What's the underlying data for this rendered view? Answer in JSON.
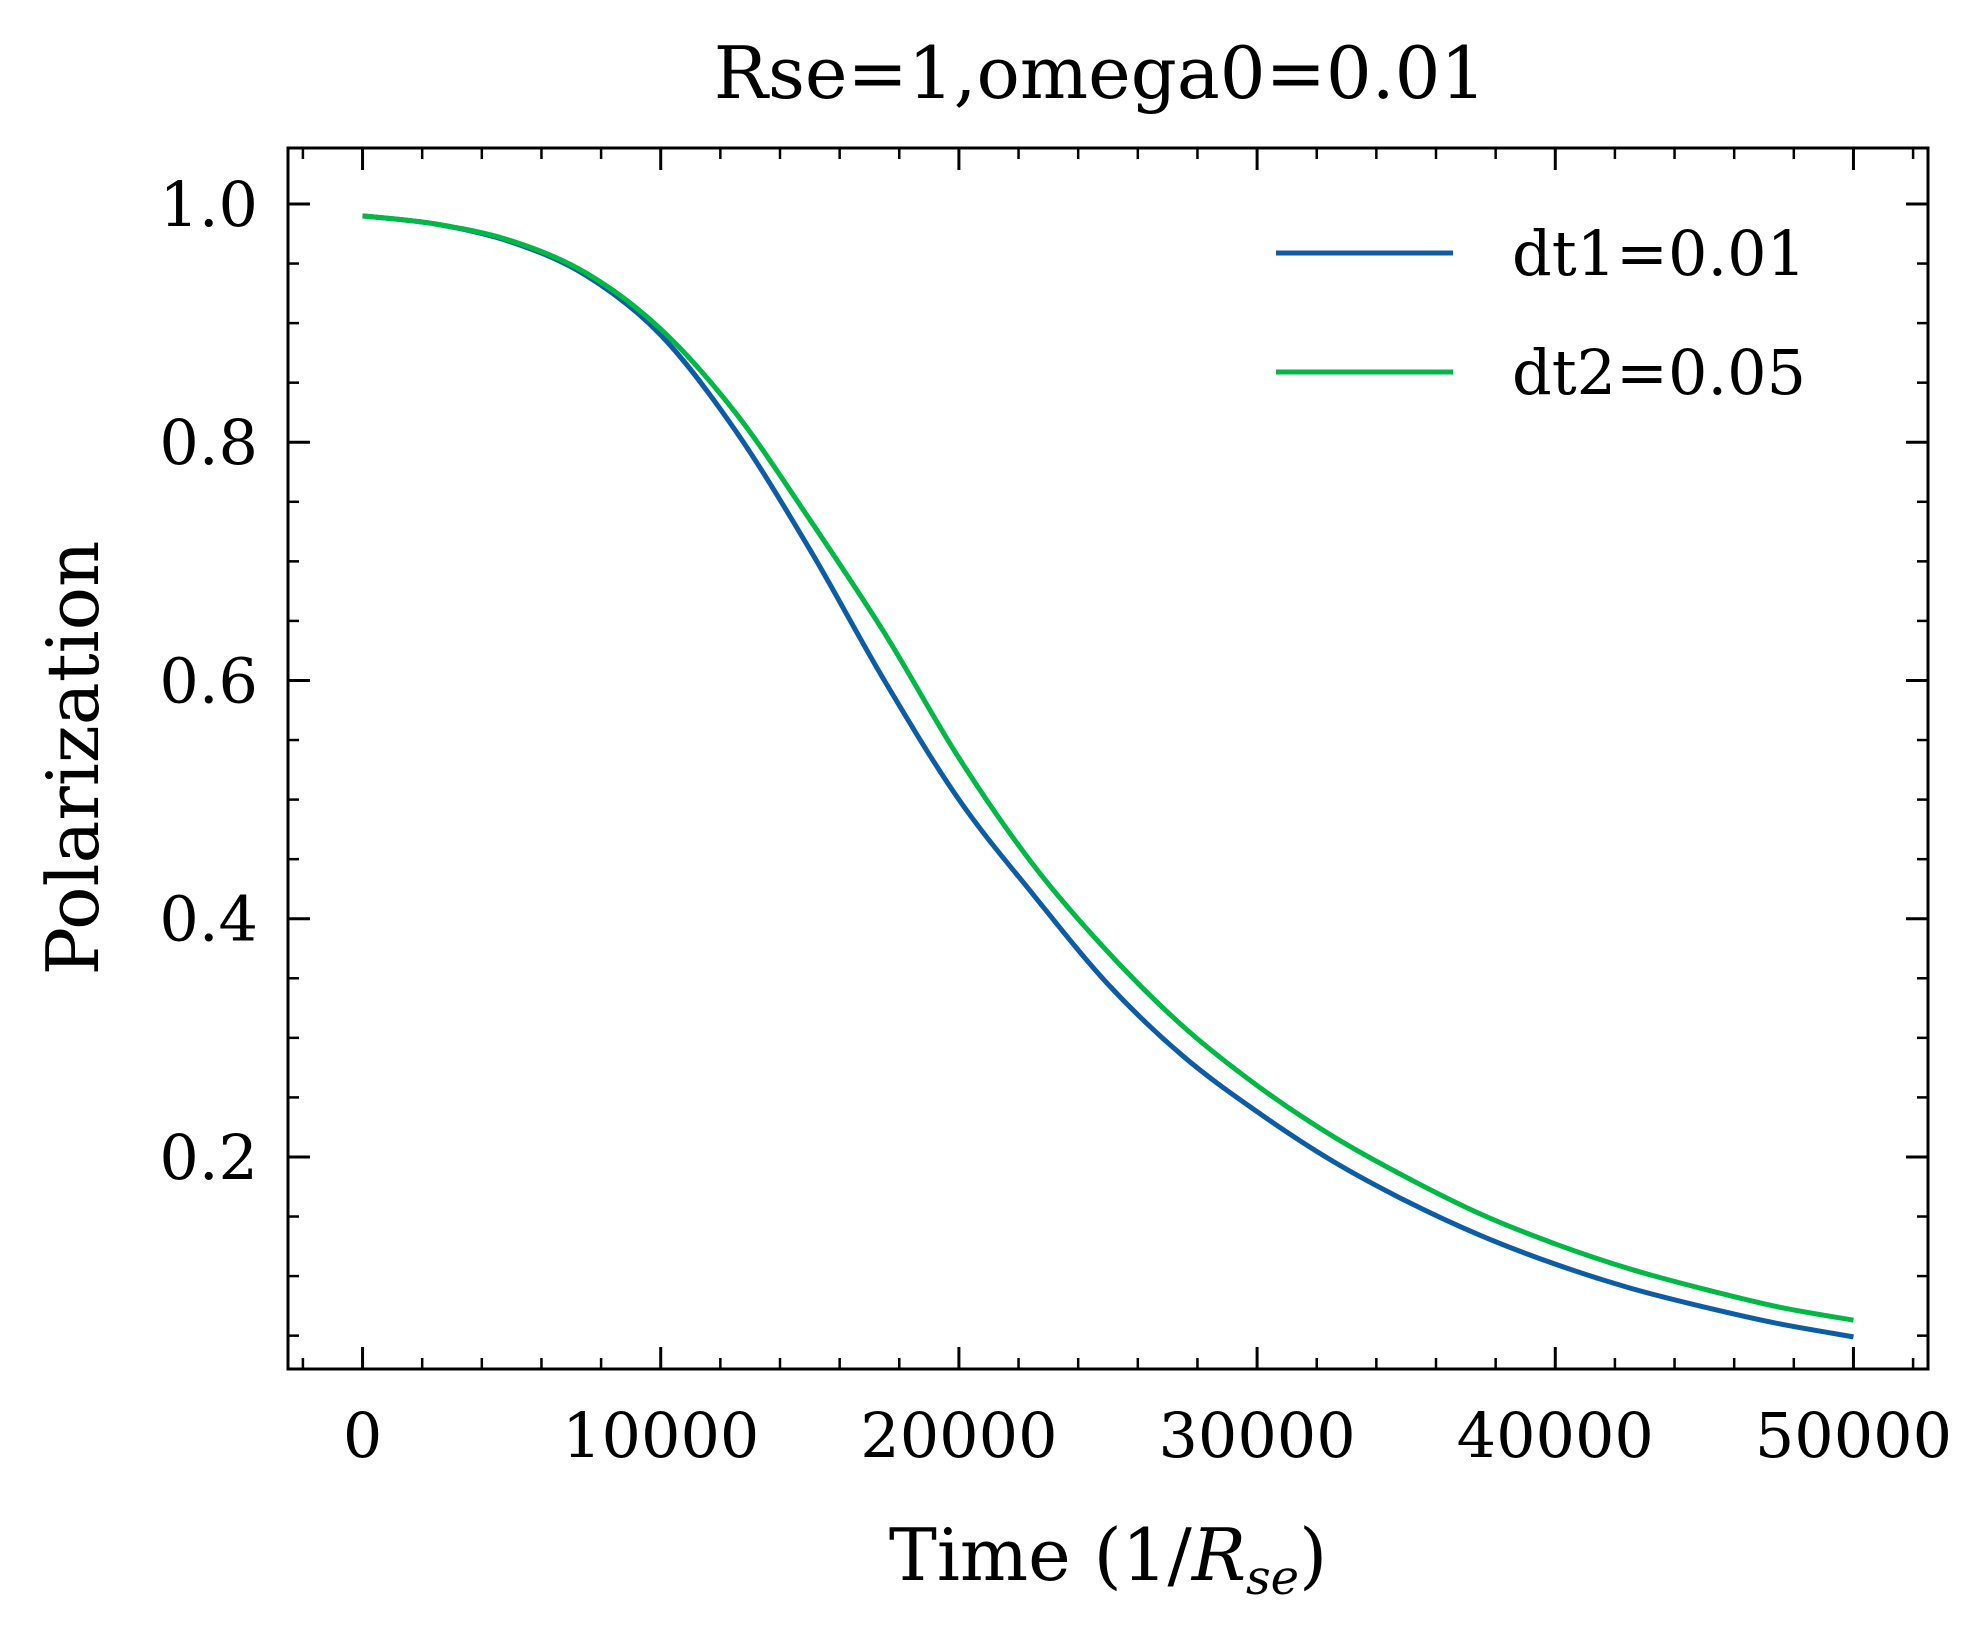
{
  "chart_data": {
    "type": "line",
    "title": "Rse=1,omega0=0.01",
    "xlabel": "Time (1/",
    "xlabel_symbol": "R",
    "xlabel_subscript": "se",
    "xlabel_close": ")",
    "ylabel": "Polarization",
    "xlim": [
      -2500,
      52500
    ],
    "ylim": [
      0.022,
      1.047
    ],
    "x_ticks": [
      0,
      10000,
      20000,
      30000,
      40000,
      50000
    ],
    "x_tick_labels": [
      "0",
      "10000",
      "20000",
      "30000",
      "40000",
      "50000"
    ],
    "y_ticks": [
      0.2,
      0.4,
      0.6,
      0.8,
      1.0
    ],
    "y_tick_labels": [
      "0.2",
      "0.4",
      "0.6",
      "0.8",
      "1.0"
    ],
    "grid": false,
    "legend_position": "top-right",
    "series": [
      {
        "name": "dt1=0.01",
        "color": "#0C5DA5",
        "x": [
          0,
          2500,
          5000,
          7500,
          10000,
          12500,
          15000,
          17500,
          20000,
          22500,
          25000,
          27500,
          30000,
          32500,
          35000,
          37500,
          40000,
          42500,
          45000,
          47500,
          50000
        ],
        "y": [
          0.99,
          0.983,
          0.968,
          0.94,
          0.89,
          0.81,
          0.71,
          0.6,
          0.5,
          0.42,
          0.345,
          0.285,
          0.238,
          0.197,
          0.163,
          0.134,
          0.11,
          0.09,
          0.074,
          0.06,
          0.049
        ]
      },
      {
        "name": "dt2=0.05",
        "color": "#00B945",
        "x": [
          0,
          2500,
          5000,
          7500,
          10000,
          12500,
          15000,
          17500,
          20000,
          22500,
          25000,
          27500,
          30000,
          32500,
          35000,
          37500,
          40000,
          42500,
          45000,
          47500,
          50000
        ],
        "y": [
          0.99,
          0.983,
          0.969,
          0.942,
          0.895,
          0.825,
          0.735,
          0.64,
          0.535,
          0.445,
          0.372,
          0.31,
          0.26,
          0.218,
          0.183,
          0.152,
          0.127,
          0.106,
          0.089,
          0.074,
          0.063
        ]
      }
    ]
  }
}
